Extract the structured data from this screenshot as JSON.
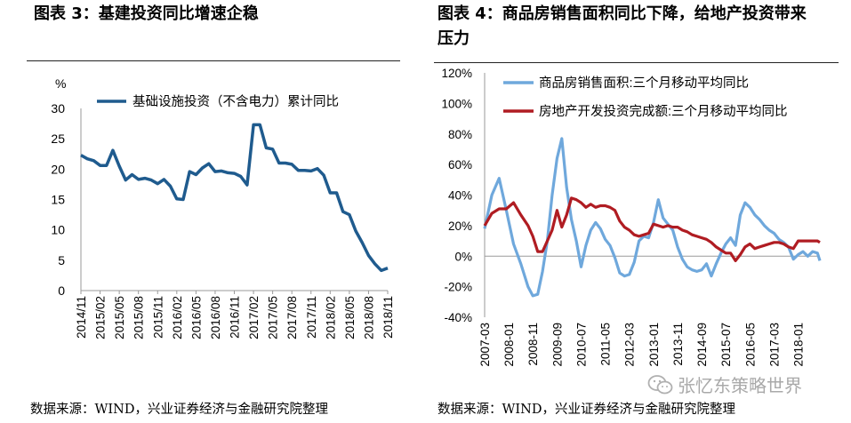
{
  "left_panel": {
    "title": "图表 3：基建投资同比增速企稳",
    "source": "数据来源：WIND，兴业证券经济与金融研究院整理"
  },
  "right_panel": {
    "title_line1": "图表 4：商品房销售面积同比下降，给地产投资带来",
    "title_line2": "压力",
    "source": "数据来源：WIND，兴业证券经济与金融研究院整理"
  },
  "watermark": {
    "text": "张忆东策略世界",
    "icon": "wechat-icon"
  },
  "colors": {
    "line_blue": "#1f5b8e",
    "line_light_blue": "#6fa8dc",
    "line_red": "#b01c22"
  },
  "chart_data": [
    {
      "type": "line",
      "unit_label": "%",
      "yticks": [
        "0",
        "5",
        "10",
        "15",
        "20",
        "25",
        "30"
      ],
      "ylim": [
        0,
        30
      ],
      "x_tick_labels": [
        "2014/11",
        "2015/02",
        "2015/05",
        "2015/08",
        "2015/11",
        "2016/02",
        "2016/05",
        "2016/08",
        "2016/11",
        "2017/02",
        "2017/05",
        "2017/08",
        "2017/11",
        "2018/02",
        "2018/05",
        "2018/08",
        "2018/11"
      ],
      "x": [
        "2014/11",
        "2014/12",
        "2015/01",
        "2015/02",
        "2015/03",
        "2015/04",
        "2015/05",
        "2015/06",
        "2015/07",
        "2015/08",
        "2015/09",
        "2015/10",
        "2015/11",
        "2015/12",
        "2016/01",
        "2016/02",
        "2016/03",
        "2016/04",
        "2016/05",
        "2016/06",
        "2016/07",
        "2016/08",
        "2016/09",
        "2016/10",
        "2016/11",
        "2016/12",
        "2017/01",
        "2017/02",
        "2017/03",
        "2017/04",
        "2017/05",
        "2017/06",
        "2017/07",
        "2017/08",
        "2017/09",
        "2017/10",
        "2017/11",
        "2017/12",
        "2018/01",
        "2018/02",
        "2018/03",
        "2018/04",
        "2018/05",
        "2018/06",
        "2018/07",
        "2018/08",
        "2018/09",
        "2018/10",
        "2018/11"
      ],
      "series": [
        {
          "name": "基础设施投资（不含电力）累计同比",
          "values": [
            22.3,
            21.7,
            21.4,
            20.6,
            20.6,
            23.1,
            20.5,
            18.2,
            19.1,
            18.3,
            18.5,
            18.2,
            17.6,
            18.3,
            17.2,
            15.1,
            15.0,
            19.6,
            19.1,
            20.2,
            20.9,
            19.6,
            19.7,
            19.4,
            19.3,
            18.8,
            17.4,
            27.3,
            27.3,
            23.5,
            23.3,
            21.0,
            21.0,
            20.8,
            19.8,
            19.8,
            19.7,
            20.1,
            19.0,
            16.1,
            16.1,
            13.0,
            12.5,
            9.8,
            7.9,
            5.8,
            4.4,
            3.3,
            3.7
          ]
        }
      ]
    },
    {
      "type": "line",
      "yticks": [
        "-40%",
        "-20%",
        "0%",
        "20%",
        "40%",
        "60%",
        "80%",
        "100%",
        "120%"
      ],
      "ylim": [
        -40,
        120
      ],
      "x_tick_labels": [
        "2007-03",
        "2008-01",
        "2008-11",
        "2009-09",
        "2010-07",
        "2011-05",
        "2012-03",
        "2013-01",
        "2013-11",
        "2014-09",
        "2015-07",
        "2016-05",
        "2017-03",
        "2018-01"
      ],
      "series": [
        {
          "name": "商品房销售面积:三个月移动平均同比",
          "points": [
            [
              "2007-03",
              18
            ],
            [
              "2007-06",
              40
            ],
            [
              "2007-09",
              51
            ],
            [
              "2007-12",
              30
            ],
            [
              "2008-03",
              8
            ],
            [
              "2008-06",
              -5
            ],
            [
              "2008-09",
              -20
            ],
            [
              "2008-11",
              -26
            ],
            [
              "2009-01",
              -25
            ],
            [
              "2009-03",
              -10
            ],
            [
              "2009-05",
              10
            ],
            [
              "2009-07",
              40
            ],
            [
              "2009-09",
              64
            ],
            [
              "2009-11",
              77
            ],
            [
              "2010-01",
              45
            ],
            [
              "2010-03",
              24
            ],
            [
              "2010-05",
              10
            ],
            [
              "2010-07",
              -7
            ],
            [
              "2010-09",
              7
            ],
            [
              "2010-11",
              17
            ],
            [
              "2011-01",
              22
            ],
            [
              "2011-03",
              18
            ],
            [
              "2011-05",
              11
            ],
            [
              "2011-07",
              7
            ],
            [
              "2011-09",
              -1
            ],
            [
              "2011-11",
              -11
            ],
            [
              "2012-01",
              -13
            ],
            [
              "2012-03",
              -12
            ],
            [
              "2012-05",
              -4
            ],
            [
              "2012-07",
              10
            ],
            [
              "2012-09",
              13
            ],
            [
              "2012-11",
              12
            ],
            [
              "2013-01",
              22
            ],
            [
              "2013-03",
              37
            ],
            [
              "2013-05",
              25
            ],
            [
              "2013-07",
              21
            ],
            [
              "2013-09",
              17
            ],
            [
              "2013-11",
              6
            ],
            [
              "2014-01",
              -2
            ],
            [
              "2014-03",
              -7
            ],
            [
              "2014-05",
              -9
            ],
            [
              "2014-07",
              -10
            ],
            [
              "2014-09",
              -9
            ],
            [
              "2014-11",
              -5
            ],
            [
              "2015-01",
              -13
            ],
            [
              "2015-03",
              -5
            ],
            [
              "2015-05",
              2
            ],
            [
              "2015-07",
              8
            ],
            [
              "2015-09",
              12
            ],
            [
              "2015-11",
              7
            ],
            [
              "2016-01",
              27
            ],
            [
              "2016-03",
              35
            ],
            [
              "2016-05",
              32
            ],
            [
              "2016-07",
              27
            ],
            [
              "2016-09",
              24
            ],
            [
              "2016-11",
              20
            ],
            [
              "2017-01",
              17
            ],
            [
              "2017-03",
              15
            ],
            [
              "2017-05",
              11
            ],
            [
              "2017-07",
              9
            ],
            [
              "2017-09",
              6
            ],
            [
              "2017-11",
              -2
            ],
            [
              "2018-01",
              1
            ],
            [
              "2018-03",
              3
            ],
            [
              "2018-05",
              0
            ],
            [
              "2018-07",
              3
            ],
            [
              "2018-09",
              2
            ],
            [
              "2018-10",
              -3
            ]
          ]
        },
        {
          "name": "房地产开发投资完成额:三个月移动平均同比",
          "points": [
            [
              "2007-03",
              20
            ],
            [
              "2007-06",
              28
            ],
            [
              "2007-09",
              31
            ],
            [
              "2007-12",
              31
            ],
            [
              "2008-03",
              35
            ],
            [
              "2008-06",
              27
            ],
            [
              "2008-09",
              20
            ],
            [
              "2008-11",
              13
            ],
            [
              "2009-01",
              3
            ],
            [
              "2009-03",
              3
            ],
            [
              "2009-05",
              10
            ],
            [
              "2009-07",
              17
            ],
            [
              "2009-09",
              30
            ],
            [
              "2009-11",
              19
            ],
            [
              "2010-01",
              27
            ],
            [
              "2010-03",
              38
            ],
            [
              "2010-05",
              37
            ],
            [
              "2010-07",
              35
            ],
            [
              "2010-09",
              32
            ],
            [
              "2010-11",
              34
            ],
            [
              "2011-01",
              32
            ],
            [
              "2011-03",
              33
            ],
            [
              "2011-05",
              33
            ],
            [
              "2011-07",
              32
            ],
            [
              "2011-09",
              30
            ],
            [
              "2011-11",
              23
            ],
            [
              "2012-01",
              19
            ],
            [
              "2012-03",
              17
            ],
            [
              "2012-05",
              14
            ],
            [
              "2012-07",
              13
            ],
            [
              "2012-09",
              14
            ],
            [
              "2012-11",
              15
            ],
            [
              "2013-01",
              21
            ],
            [
              "2013-03",
              20
            ],
            [
              "2013-05",
              19
            ],
            [
              "2013-07",
              20
            ],
            [
              "2013-09",
              19
            ],
            [
              "2013-11",
              19
            ],
            [
              "2014-01",
              17
            ],
            [
              "2014-03",
              16
            ],
            [
              "2014-05",
              14
            ],
            [
              "2014-07",
              13
            ],
            [
              "2014-09",
              12
            ],
            [
              "2014-11",
              11
            ],
            [
              "2015-01",
              9
            ],
            [
              "2015-03",
              6
            ],
            [
              "2015-05",
              4
            ],
            [
              "2015-07",
              2
            ],
            [
              "2015-09",
              2
            ],
            [
              "2015-11",
              -3
            ],
            [
              "2016-01",
              1
            ],
            [
              "2016-03",
              6
            ],
            [
              "2016-05",
              8
            ],
            [
              "2016-07",
              5
            ],
            [
              "2016-09",
              6
            ],
            [
              "2016-11",
              7
            ],
            [
              "2017-01",
              8
            ],
            [
              "2017-03",
              9
            ],
            [
              "2017-05",
              9
            ],
            [
              "2017-07",
              8
            ],
            [
              "2017-09",
              6
            ],
            [
              "2017-11",
              5
            ],
            [
              "2018-01",
              10
            ],
            [
              "2018-03",
              10
            ],
            [
              "2018-05",
              10
            ],
            [
              "2018-07",
              10
            ],
            [
              "2018-09",
              10
            ],
            [
              "2018-10",
              9
            ]
          ]
        }
      ]
    }
  ]
}
